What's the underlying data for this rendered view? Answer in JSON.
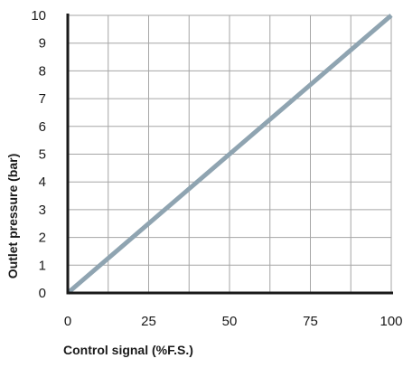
{
  "chart_data": {
    "type": "line",
    "title": "",
    "xlabel": "Control signal (%F.S.)",
    "ylabel": "Outlet pressure (bar)",
    "xlim": [
      0,
      100
    ],
    "ylim": [
      0,
      10
    ],
    "x_ticks": [
      "0",
      "25",
      "50",
      "75",
      "100"
    ],
    "y_ticks": [
      "0",
      "1",
      "2",
      "3",
      "4",
      "5",
      "6",
      "7",
      "8",
      "9",
      "10"
    ],
    "grid": true,
    "series": [
      {
        "x": [
          0,
          100
        ],
        "y": [
          0,
          10
        ],
        "color": "#8fa4b1"
      }
    ]
  }
}
